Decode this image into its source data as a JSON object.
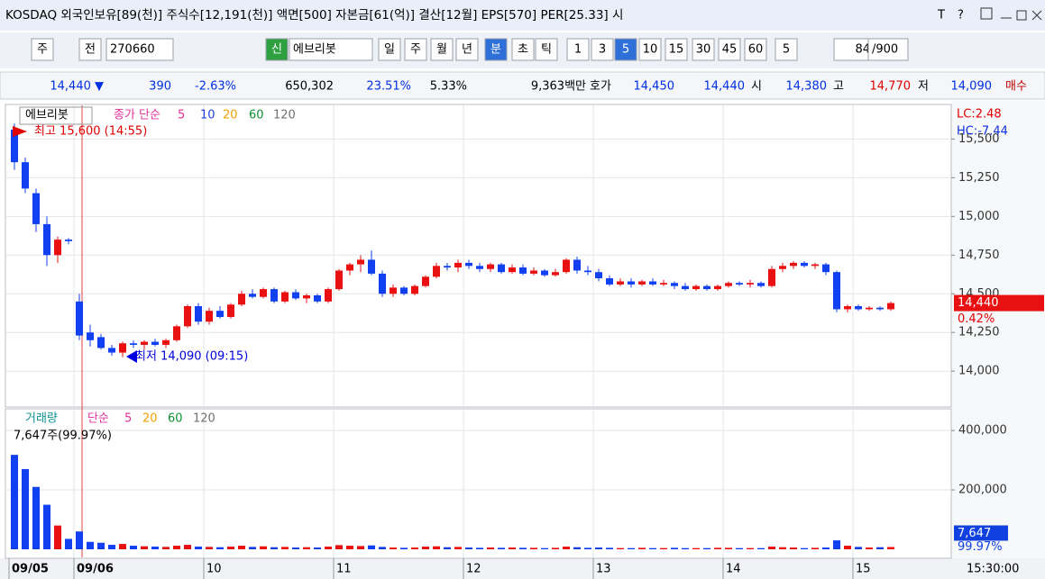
{
  "header": {
    "title": "KOSDAQ 외국인보유[89(천)] 주식수[12,191(천)] 액면[500] 자본금[61(억)] 결산[12월] EPS[570] PER[25.33] 시",
    "tools": [
      "T",
      "?"
    ]
  },
  "toolbar": {
    "items": [
      "주",
      "전",
      "270660",
      "신",
      "에브리봇",
      "일",
      "주",
      "월",
      "년",
      "분",
      "초",
      "틱",
      "1",
      "3",
      "5",
      "10",
      "15",
      "30",
      "45",
      "60",
      "5",
      "84",
      "/900"
    ]
  },
  "quote": {
    "items": [
      {
        "text": "14,440 ▼",
        "color": "#0030e0"
      },
      {
        "text": "390",
        "color": "#0030e0"
      },
      {
        "text": "-2.63%",
        "color": "#0030e0"
      },
      {
        "text": "650,302",
        "color": "#000000"
      },
      {
        "text": "23.51%",
        "color": "#0030e0"
      },
      {
        "text": "5.33%",
        "color": "#000000"
      },
      {
        "text": "9,363백만",
        "color": "#000000"
      },
      {
        "text": "호가",
        "color": "#000000"
      },
      {
        "text": "14,450",
        "color": "#0030e0"
      },
      {
        "text": "14,440",
        "color": "#0030e0"
      },
      {
        "text": "시",
        "color": "#000000"
      },
      {
        "text": "14,380",
        "color": "#0030e0"
      },
      {
        "text": "고",
        "color": "#000000"
      },
      {
        "text": "14,770",
        "color": "#e00000"
      },
      {
        "text": "저",
        "color": "#000000"
      },
      {
        "text": "14,090",
        "color": "#0030e0"
      },
      {
        "text": "매수",
        "color": "#c00000"
      }
    ]
  },
  "chart_data": [
    {
      "type": "candlestick",
      "legend": [
        {
          "text": "에브리봇",
          "color": "#000000"
        },
        {
          "text": "종가 단순",
          "color": "#e0309a"
        },
        {
          "text": "5",
          "color": "#e0309a"
        },
        {
          "text": "10",
          "color": "#2040e0"
        },
        {
          "text": "20",
          "color": "#f0a000"
        },
        {
          "text": "60",
          "color": "#109030"
        },
        {
          "text": "120",
          "color": "#707070"
        }
      ],
      "up_color": "#e81010",
      "down_color": "#1040f0",
      "categories": [
        "09/05",
        null,
        null,
        null,
        null,
        null,
        "09/06",
        null,
        null,
        null,
        null,
        null,
        null,
        null,
        null,
        null,
        null,
        null,
        "10",
        null,
        null,
        null,
        null,
        null,
        null,
        null,
        null,
        null,
        null,
        null,
        "11",
        null,
        null,
        null,
        null,
        null,
        null,
        null,
        null,
        null,
        null,
        null,
        "12",
        null,
        null,
        null,
        null,
        null,
        null,
        null,
        null,
        null,
        null,
        null,
        "13",
        null,
        null,
        null,
        null,
        null,
        null,
        null,
        null,
        null,
        null,
        null,
        "14",
        null,
        null,
        null,
        null,
        null,
        null,
        null,
        null,
        null,
        null,
        null,
        "15",
        null,
        null,
        null
      ],
      "ohlc": [
        [
          15560,
          15600,
          15300,
          15350
        ],
        [
          15350,
          15380,
          15150,
          15180
        ],
        [
          15150,
          15180,
          14900,
          14950
        ],
        [
          14950,
          15000,
          14680,
          14750
        ],
        [
          14750,
          14870,
          14700,
          14850
        ],
        [
          14850,
          14860,
          14820,
          14840
        ],
        [
          14450,
          14500,
          14200,
          14230
        ],
        [
          14250,
          14300,
          14160,
          14200
        ],
        [
          14220,
          14240,
          14140,
          14150
        ],
        [
          14150,
          14170,
          14100,
          14120
        ],
        [
          14120,
          14190,
          14090,
          14180
        ],
        [
          14180,
          14200,
          14150,
          14170
        ],
        [
          14170,
          14200,
          14140,
          14190
        ],
        [
          14190,
          14210,
          14160,
          14170
        ],
        [
          14170,
          14210,
          14150,
          14200
        ],
        [
          14200,
          14300,
          14190,
          14290
        ],
        [
          14290,
          14430,
          14280,
          14420
        ],
        [
          14420,
          14440,
          14300,
          14320
        ],
        [
          14320,
          14410,
          14300,
          14390
        ],
        [
          14390,
          14420,
          14340,
          14350
        ],
        [
          14350,
          14440,
          14340,
          14430
        ],
        [
          14430,
          14520,
          14420,
          14500
        ],
        [
          14500,
          14530,
          14470,
          14480
        ],
        [
          14480,
          14540,
          14470,
          14530
        ],
        [
          14530,
          14540,
          14440,
          14450
        ],
        [
          14450,
          14520,
          14440,
          14510
        ],
        [
          14510,
          14530,
          14460,
          14470
        ],
        [
          14470,
          14500,
          14440,
          14490
        ],
        [
          14490,
          14500,
          14440,
          14450
        ],
        [
          14450,
          14540,
          14440,
          14530
        ],
        [
          14530,
          14660,
          14520,
          14650
        ],
        [
          14650,
          14700,
          14620,
          14690
        ],
        [
          14690,
          14750,
          14640,
          14720
        ],
        [
          14720,
          14780,
          14620,
          14630
        ],
        [
          14630,
          14650,
          14480,
          14500
        ],
        [
          14500,
          14560,
          14480,
          14540
        ],
        [
          14540,
          14550,
          14490,
          14500
        ],
        [
          14500,
          14560,
          14490,
          14550
        ],
        [
          14550,
          14620,
          14540,
          14610
        ],
        [
          14610,
          14700,
          14600,
          14680
        ],
        [
          14680,
          14700,
          14650,
          14670
        ],
        [
          14670,
          14720,
          14640,
          14700
        ],
        [
          14700,
          14720,
          14660,
          14680
        ],
        [
          14680,
          14700,
          14640,
          14660
        ],
        [
          14660,
          14700,
          14640,
          14690
        ],
        [
          14690,
          14700,
          14630,
          14640
        ],
        [
          14640,
          14690,
          14630,
          14670
        ],
        [
          14670,
          14690,
          14620,
          14630
        ],
        [
          14630,
          14670,
          14620,
          14650
        ],
        [
          14650,
          14660,
          14610,
          14620
        ],
        [
          14620,
          14660,
          14610,
          14640
        ],
        [
          14640,
          14730,
          14630,
          14720
        ],
        [
          14720,
          14740,
          14630,
          14650
        ],
        [
          14650,
          14680,
          14620,
          14640
        ],
        [
          14640,
          14660,
          14580,
          14600
        ],
        [
          14600,
          14620,
          14550,
          14560
        ],
        [
          14560,
          14600,
          14550,
          14580
        ],
        [
          14580,
          14600,
          14540,
          14560
        ],
        [
          14560,
          14590,
          14550,
          14580
        ],
        [
          14580,
          14600,
          14550,
          14560
        ],
        [
          14560,
          14590,
          14550,
          14570
        ],
        [
          14570,
          14580,
          14530,
          14550
        ],
        [
          14550,
          14570,
          14520,
          14530
        ],
        [
          14530,
          14560,
          14520,
          14550
        ],
        [
          14550,
          14560,
          14520,
          14530
        ],
        [
          14530,
          14560,
          14520,
          14550
        ],
        [
          14550,
          14580,
          14540,
          14570
        ],
        [
          14570,
          14580,
          14550,
          14560
        ],
        [
          14560,
          14590,
          14540,
          14570
        ],
        [
          14570,
          14580,
          14540,
          14550
        ],
        [
          14550,
          14680,
          14540,
          14660
        ],
        [
          14660,
          14700,
          14640,
          14680
        ],
        [
          14680,
          14710,
          14660,
          14700
        ],
        [
          14700,
          14710,
          14670,
          14680
        ],
        [
          14680,
          14700,
          14660,
          14690
        ],
        [
          14690,
          14700,
          14620,
          14640
        ],
        [
          14640,
          14650,
          14380,
          14400
        ],
        [
          14400,
          14430,
          14380,
          14420
        ],
        [
          14420,
          14430,
          14390,
          14400
        ],
        [
          14400,
          14420,
          14390,
          14410
        ],
        [
          14410,
          14420,
          14390,
          14400
        ],
        [
          14400,
          14450,
          14390,
          14440
        ]
      ],
      "ylim": [
        13780,
        15700
      ],
      "yticks": [
        {
          "value": 14000,
          "label": "14,000"
        },
        {
          "value": 14250,
          "label": "14,250"
        },
        {
          "value": 14500,
          "label": "14,500"
        },
        {
          "value": 14750,
          "label": "14,750"
        },
        {
          "value": 15000,
          "label": "15,000"
        },
        {
          "value": 15250,
          "label": "15,250"
        },
        {
          "value": 15500,
          "label": "15,500"
        }
      ],
      "grid": true,
      "annotations": [
        {
          "text": "최고 15,600 (14:55)",
          "color": "#e00000"
        },
        {
          "text": "최저 14,090 (09:15)",
          "color": "#0000e0"
        }
      ],
      "side_labels": [
        {
          "text": "LC:2.48",
          "color": "#e00000"
        },
        {
          "text": "HC:-7.44",
          "color": "#1030e0"
        }
      ],
      "last": {
        "value": 14440,
        "label": "14,440"
      },
      "last_change": "0.42%",
      "time_label": "15:30:00"
    },
    {
      "type": "bar",
      "legend": [
        {
          "text": "거래량",
          "color": "#109090"
        },
        {
          "text": "단순",
          "color": "#e0309a"
        },
        {
          "text": "5",
          "color": "#e0309a"
        },
        {
          "text": "20",
          "color": "#f0a000"
        },
        {
          "text": "60",
          "color": "#109030"
        },
        {
          "text": "120",
          "color": "#707070"
        }
      ],
      "info": "7,647주(99.97%)",
      "values": [
        318000,
        270000,
        210000,
        150000,
        80000,
        35000,
        60000,
        25000,
        22000,
        15000,
        18000,
        12000,
        10000,
        9000,
        8000,
        12000,
        15000,
        9000,
        8000,
        7000,
        9000,
        12000,
        8000,
        10000,
        7000,
        8000,
        6000,
        7000,
        6000,
        9000,
        14000,
        12000,
        11000,
        13000,
        8000,
        6000,
        5000,
        6000,
        9000,
        10000,
        7000,
        8000,
        6000,
        5000,
        6000,
        5000,
        6000,
        5000,
        5000,
        4000,
        5000,
        9000,
        7000,
        5000,
        6000,
        5000,
        4000,
        4000,
        5000,
        4000,
        4000,
        5000,
        4000,
        4000,
        4000,
        5000,
        5000,
        4000,
        4000,
        4000,
        9000,
        7000,
        6000,
        4000,
        5000,
        6000,
        30000,
        12000,
        8000,
        6000,
        7000,
        7647
      ],
      "ylim": [
        0,
        470000
      ],
      "yticks": [
        {
          "value": 200000,
          "label": "200,000"
        },
        {
          "value": 400000,
          "label": "400,000"
        }
      ],
      "last": {
        "value": 7647,
        "label": "7,647"
      },
      "last_change": "99.97%"
    }
  ]
}
